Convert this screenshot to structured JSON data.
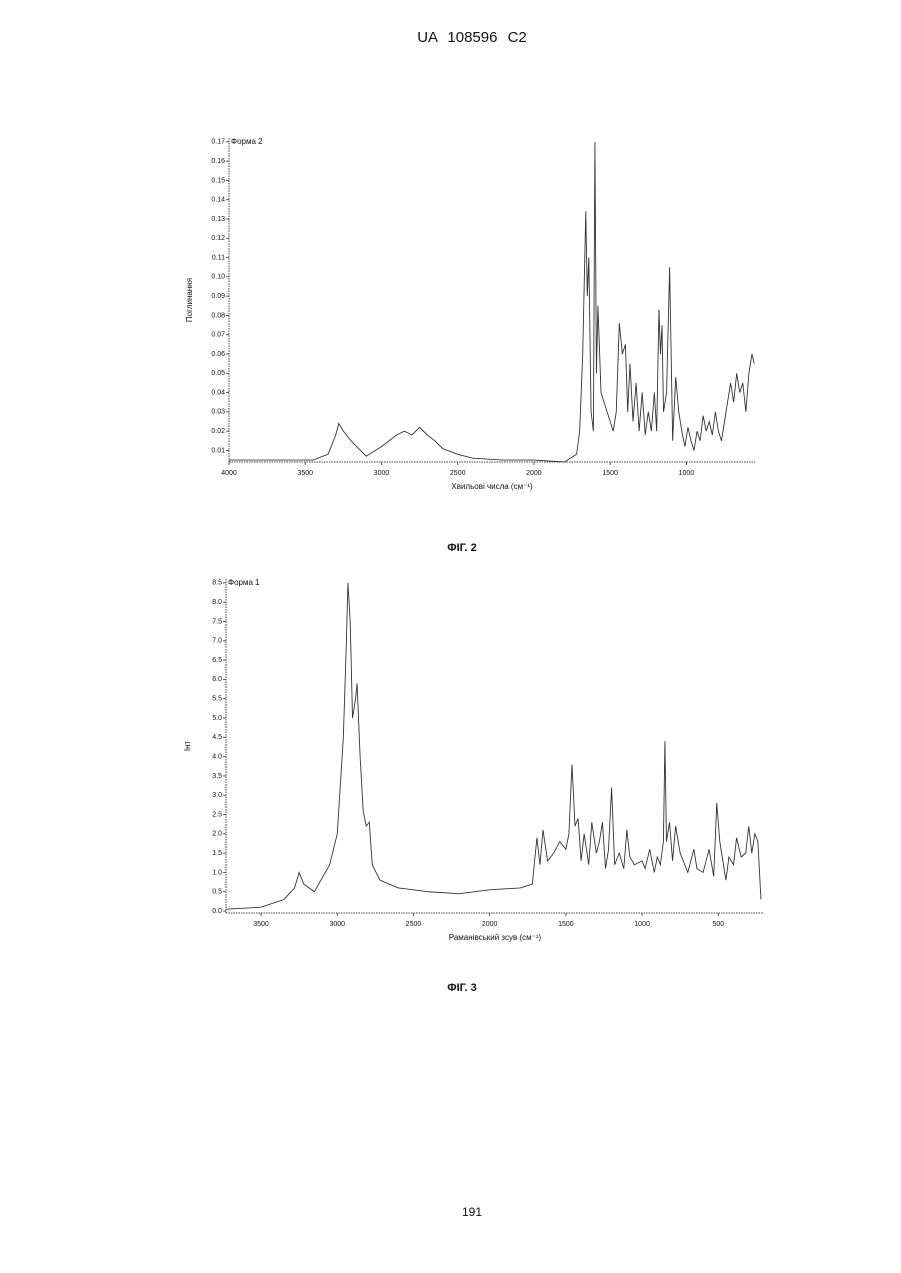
{
  "header": "UA 108596 C2",
  "page_number": "191",
  "chart_data": [
    {
      "type": "line",
      "caption": "ФІГ. 2",
      "annotation": "Форма 2",
      "x_label": "Хвильові числа (см⁻¹)",
      "y_label": "Поглинання",
      "xlim": [
        4000,
        550
      ],
      "ylim": [
        0.004,
        0.172
      ],
      "xticks": [
        4000,
        3500,
        3000,
        2500,
        2000,
        1500,
        1000
      ],
      "yticks": [
        0.01,
        0.02,
        0.03,
        0.04,
        0.05,
        0.06,
        0.07,
        0.08,
        0.09,
        {
          "value": 0.1,
          "label": "0.10"
        },
        0.11,
        0.12,
        0.13,
        0.14,
        0.15,
        0.16,
        0.17
      ],
      "color": "#333333",
      "x": [
        4000,
        3700,
        3450,
        3350,
        3300,
        3280,
        3250,
        3200,
        3100,
        3000,
        2950,
        2900,
        2850,
        2800,
        2750,
        2700,
        2650,
        2600,
        2500,
        2400,
        2200,
        2000,
        1800,
        1720,
        1700,
        1680,
        1660,
        1650,
        1640,
        1625,
        1610,
        1600,
        1590,
        1580,
        1560,
        1540,
        1520,
        1500,
        1480,
        1460,
        1440,
        1420,
        1400,
        1385,
        1370,
        1350,
        1330,
        1310,
        1290,
        1270,
        1250,
        1230,
        1210,
        1195,
        1180,
        1170,
        1160,
        1150,
        1130,
        1110,
        1090,
        1070,
        1050,
        1030,
        1010,
        990,
        970,
        950,
        930,
        910,
        890,
        870,
        850,
        830,
        810,
        790,
        770,
        750,
        730,
        710,
        690,
        670,
        650,
        630,
        610,
        590,
        570,
        555
      ],
      "values": [
        0.005,
        0.005,
        0.005,
        0.008,
        0.018,
        0.024,
        0.02,
        0.015,
        0.007,
        0.012,
        0.015,
        0.018,
        0.02,
        0.018,
        0.022,
        0.018,
        0.015,
        0.011,
        0.008,
        0.006,
        0.005,
        0.005,
        0.004,
        0.008,
        0.02,
        0.06,
        0.134,
        0.09,
        0.11,
        0.03,
        0.02,
        0.17,
        0.05,
        0.085,
        0.04,
        0.035,
        0.03,
        0.025,
        0.02,
        0.03,
        0.076,
        0.06,
        0.065,
        0.03,
        0.055,
        0.025,
        0.045,
        0.02,
        0.04,
        0.018,
        0.03,
        0.02,
        0.04,
        0.02,
        0.083,
        0.06,
        0.075,
        0.03,
        0.04,
        0.105,
        0.015,
        0.048,
        0.03,
        0.02,
        0.012,
        0.022,
        0.015,
        0.01,
        0.02,
        0.015,
        0.028,
        0.02,
        0.025,
        0.018,
        0.03,
        0.02,
        0.015,
        0.025,
        0.035,
        0.045,
        0.035,
        0.05,
        0.04,
        0.045,
        0.03,
        0.05,
        0.06,
        0.055
      ]
    },
    {
      "type": "line",
      "caption": "ФІГ. 3",
      "annotation": "Форма 1",
      "x_label": "Раманівський зсув (см⁻¹)",
      "y_label": "Інт",
      "xlim": [
        3730,
        200
      ],
      "ylim": [
        -0.05,
        8.6
      ],
      "xticks": [
        3500,
        3000,
        2500,
        2000,
        1500,
        1000,
        500
      ],
      "yticks": [
        {
          "value": 0,
          "label": "0.0"
        },
        0.5,
        {
          "value": 1,
          "label": "1.0"
        },
        1.5,
        {
          "value": 2,
          "label": "2.0"
        },
        2.5,
        {
          "value": 3,
          "label": "3.0"
        },
        3.5,
        {
          "value": 4,
          "label": "4.0"
        },
        4.5,
        {
          "value": 5,
          "label": "5.0"
        },
        5.5,
        {
          "value": 6,
          "label": "6.0"
        },
        6.5,
        {
          "value": 7,
          "label": "7.0"
        },
        7.5,
        {
          "value": 8,
          "label": "8.0"
        },
        8.5
      ],
      "color": "#333333",
      "x": [
        3730,
        3500,
        3350,
        3280,
        3250,
        3220,
        3150,
        3050,
        3000,
        2960,
        2940,
        2930,
        2915,
        2900,
        2880,
        2870,
        2850,
        2830,
        2810,
        2790,
        2770,
        2720,
        2600,
        2400,
        2200,
        2000,
        1800,
        1720,
        1690,
        1670,
        1650,
        1620,
        1580,
        1540,
        1500,
        1480,
        1460,
        1440,
        1420,
        1400,
        1380,
        1350,
        1330,
        1300,
        1280,
        1260,
        1240,
        1220,
        1200,
        1180,
        1150,
        1120,
        1100,
        1080,
        1050,
        1000,
        980,
        950,
        920,
        900,
        880,
        860,
        850,
        840,
        820,
        800,
        780,
        750,
        720,
        700,
        680,
        660,
        640,
        600,
        560,
        530,
        510,
        490,
        470,
        450,
        430,
        400,
        380,
        350,
        320,
        300,
        280,
        260,
        240,
        220
      ],
      "values": [
        0.05,
        0.1,
        0.3,
        0.6,
        1.0,
        0.7,
        0.5,
        1.2,
        2.0,
        4.5,
        7.0,
        8.5,
        7.5,
        5.0,
        5.5,
        5.9,
        4.0,
        2.6,
        2.2,
        2.3,
        1.2,
        0.8,
        0.6,
        0.5,
        0.45,
        0.55,
        0.6,
        0.7,
        1.9,
        1.2,
        2.1,
        1.3,
        1.5,
        1.8,
        1.6,
        2.0,
        3.8,
        2.2,
        2.4,
        1.3,
        2.0,
        1.2,
        2.3,
        1.5,
        1.8,
        2.3,
        1.1,
        1.6,
        3.2,
        1.2,
        1.5,
        1.1,
        2.1,
        1.4,
        1.2,
        1.3,
        1.1,
        1.6,
        1.0,
        1.4,
        1.2,
        1.8,
        4.4,
        1.8,
        2.3,
        1.3,
        2.2,
        1.5,
        1.2,
        1.0,
        1.3,
        1.6,
        1.1,
        1.0,
        1.6,
        0.9,
        2.8,
        1.8,
        1.3,
        0.8,
        1.4,
        1.2,
        1.9,
        1.4,
        1.5,
        2.2,
        1.5,
        2.0,
        1.8,
        0.3
      ]
    }
  ]
}
